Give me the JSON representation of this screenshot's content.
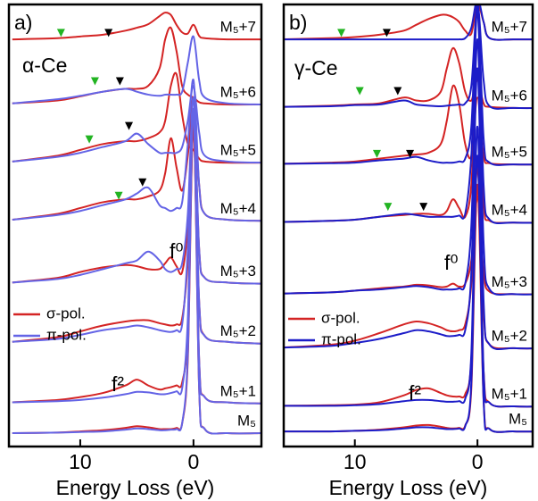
{
  "chart_data": [
    {
      "type": "line",
      "panel_label": "a)",
      "sample": "α-Ce",
      "xlabel": "Energy Loss (eV)",
      "x": [
        16,
        12,
        10,
        8,
        6,
        5,
        4,
        3,
        2.5,
        2,
        1.5,
        1,
        0.5,
        0,
        -0.5,
        -1,
        -3,
        -6
      ],
      "xlim": [
        16.3,
        -6
      ],
      "xticks": [
        10,
        0
      ],
      "ylim": [
        0,
        7.6
      ],
      "spectrum_labels": [
        "M₅+7",
        "M₅+6",
        "M₅+5",
        "M₅+4",
        "M₅+3",
        "M₅+2",
        "M₅+1",
        "M₅"
      ],
      "series": [
        {
          "name": "σ-pol.",
          "color": "#d42424",
          "values": [
            [
              7.0,
              7.02,
              7.05,
              7.08,
              7.15,
              7.2,
              7.26,
              7.4,
              7.46,
              7.42,
              7.25,
              7.12,
              7.1,
              7.25,
              7.06,
              7.02,
              7.0,
              7.0
            ],
            [
              5.9,
              5.95,
              6.02,
              6.1,
              6.15,
              6.15,
              6.2,
              6.5,
              7.0,
              7.2,
              6.8,
              6.2,
              6.05,
              6.0,
              5.92,
              5.9,
              5.88,
              5.88
            ],
            [
              4.9,
              5.0,
              5.1,
              5.2,
              5.25,
              5.25,
              5.3,
              5.4,
              5.6,
              6.2,
              6.4,
              5.7,
              5.2,
              5.1,
              4.95,
              4.9,
              4.88,
              4.88
            ],
            [
              3.9,
              4.0,
              4.1,
              4.2,
              4.25,
              4.25,
              4.3,
              4.4,
              4.7,
              5.3,
              4.8,
              4.4,
              5.0,
              6.0,
              4.5,
              4.0,
              3.9,
              3.88
            ],
            [
              2.82,
              2.9,
              3.0,
              3.08,
              3.12,
              3.1,
              3.05,
              3.05,
              3.15,
              3.25,
              3.1,
              3.0,
              3.8,
              5.8,
              3.4,
              2.9,
              2.82,
              2.8
            ],
            [
              1.8,
              1.88,
              1.98,
              2.08,
              2.15,
              2.17,
              2.17,
              2.12,
              2.1,
              2.08,
              2.1,
              2.2,
              3.2,
              5.5,
              2.5,
              1.9,
              1.8,
              1.77
            ],
            [
              0.76,
              0.8,
              0.85,
              0.92,
              1.05,
              1.15,
              1.05,
              0.98,
              1.0,
              1.02,
              1.05,
              1.1,
              2.0,
              5.5,
              1.5,
              0.85,
              0.76,
              0.74
            ],
            [
              0.23,
              0.24,
              0.26,
              0.28,
              0.32,
              0.35,
              0.33,
              0.3,
              0.3,
              0.3,
              0.32,
              0.4,
              1.5,
              5.6,
              1.0,
              0.3,
              0.23,
              0.23
            ]
          ]
        },
        {
          "name": "π-pol.",
          "color": "#6464e6",
          "values": [
            null,
            [
              5.9,
              5.97,
              6.03,
              6.1,
              6.15,
              6.1,
              6.05,
              6.03,
              6.05,
              6.05,
              6.05,
              6.1,
              6.6,
              7.05,
              6.3,
              6.0,
              5.9,
              5.88
            ],
            [
              4.9,
              4.98,
              5.05,
              5.15,
              5.25,
              5.38,
              5.2,
              5.05,
              5.05,
              5.05,
              5.05,
              5.15,
              5.6,
              6.2,
              5.4,
              5.0,
              4.9,
              4.88
            ],
            [
              3.9,
              3.98,
              4.05,
              4.15,
              4.25,
              4.35,
              4.45,
              4.15,
              4.1,
              4.05,
              4.1,
              4.2,
              5.2,
              6.3,
              4.5,
              4.0,
              3.9,
              3.88
            ],
            [
              2.82,
              2.88,
              2.95,
              3.05,
              3.15,
              3.2,
              3.35,
              3.2,
              3.05,
              3.0,
              3.05,
              3.15,
              4.0,
              6.0,
              3.4,
              2.9,
              2.82,
              2.8
            ],
            [
              1.8,
              1.85,
              1.92,
              2.0,
              2.05,
              2.08,
              2.05,
              2.0,
              1.98,
              1.97,
              2.0,
              2.1,
              3.4,
              5.8,
              2.5,
              1.9,
              1.8,
              1.77
            ],
            [
              0.76,
              0.78,
              0.8,
              0.84,
              0.9,
              0.94,
              0.93,
              0.9,
              0.9,
              0.92,
              0.95,
              1.0,
              2.2,
              5.8,
              1.5,
              0.85,
              0.76,
              0.74
            ],
            [
              0.23,
              0.24,
              0.25,
              0.26,
              0.29,
              0.31,
              0.3,
              0.28,
              0.28,
              0.29,
              0.3,
              0.4,
              1.6,
              5.8,
              1.0,
              0.3,
              0.23,
              0.23
            ]
          ]
        }
      ],
      "markers": [
        {
          "x": 11.7,
          "y": 7.11,
          "color": "#22b422"
        },
        {
          "x": 7.5,
          "y": 7.11,
          "color": "#000000"
        },
        {
          "x": 8.7,
          "y": 6.28,
          "color": "#22b422"
        },
        {
          "x": 6.5,
          "y": 6.28,
          "color": "#000000"
        },
        {
          "x": 9.2,
          "y": 5.28,
          "color": "#22b422"
        },
        {
          "x": 5.7,
          "y": 5.51,
          "color": "#000000"
        },
        {
          "x": 6.6,
          "y": 4.31,
          "color": "#22b422"
        },
        {
          "x": 4.5,
          "y": 4.54,
          "color": "#000000"
        }
      ],
      "annotations": [
        "f⁰",
        "f²"
      ]
    },
    {
      "type": "line",
      "panel_label": "b)",
      "sample": "γ-Ce",
      "xlabel": "Energy Loss (eV)",
      "x": [
        16,
        12,
        10,
        8,
        6,
        5,
        4,
        3,
        2.5,
        2,
        1.5,
        1,
        0.5,
        0,
        -0.5,
        -1,
        -3,
        -6
      ],
      "xlim": [
        15.8,
        -4.5
      ],
      "xticks": [
        10,
        0
      ],
      "ylim": [
        0,
        7.6
      ],
      "spectrum_labels": [
        "M₅+7",
        "M₅+6",
        "M₅+5",
        "M₅+4",
        "M₅+3",
        "M₅+2",
        "M₅+1",
        "M₅"
      ],
      "series": [
        {
          "name": "σ-pol.",
          "color": "#d42424",
          "values": [
            [
              7.0,
              7.02,
              7.04,
              7.08,
              7.15,
              7.25,
              7.35,
              7.42,
              7.42,
              7.38,
              7.3,
              7.15,
              7.1,
              7.6,
              7.3,
              7.02,
              7.0,
              7.0
            ],
            [
              5.84,
              5.86,
              5.88,
              5.9,
              6.0,
              5.95,
              5.95,
              6.1,
              6.5,
              6.85,
              6.6,
              6.1,
              5.95,
              6.3,
              5.9,
              5.84,
              5.82,
              5.82
            ],
            [
              4.86,
              4.88,
              4.9,
              4.95,
              5.0,
              5.02,
              5.05,
              5.2,
              5.6,
              6.2,
              5.9,
              5.2,
              5.0,
              6.0,
              5.0,
              4.87,
              4.85,
              4.85
            ],
            [
              3.86,
              3.88,
              3.9,
              3.95,
              3.98,
              4.0,
              4.0,
              3.98,
              4.05,
              4.25,
              4.1,
              3.95,
              4.5,
              6.5,
              4.2,
              3.88,
              3.85,
              3.85
            ],
            [
              2.63,
              2.65,
              2.68,
              2.72,
              2.75,
              2.78,
              2.77,
              2.74,
              2.75,
              2.8,
              2.75,
              2.8,
              3.2,
              4.3,
              3.0,
              2.66,
              2.62,
              2.62
            ],
            [
              1.7,
              1.75,
              1.82,
              1.95,
              2.1,
              2.15,
              2.12,
              2.05,
              2.0,
              1.98,
              2.0,
              2.1,
              2.8,
              4.8,
              2.3,
              1.75,
              1.69,
              1.69
            ],
            [
              0.7,
              0.71,
              0.72,
              0.76,
              0.88,
              0.97,
              1.0,
              0.92,
              0.88,
              0.86,
              0.86,
              0.9,
              1.5,
              4.5,
              1.3,
              0.75,
              0.69,
              0.69
            ],
            [
              0.26,
              0.26,
              0.27,
              0.29,
              0.33,
              0.36,
              0.37,
              0.34,
              0.32,
              0.31,
              0.32,
              0.36,
              1.0,
              4.5,
              0.8,
              0.3,
              0.26,
              0.26
            ]
          ]
        },
        {
          "name": "π-pol.",
          "color": "#1c1cc8",
          "values": [
            [
              7.0,
              7.0,
              7.0,
              7.0,
              7.0,
              7.0,
              7.0,
              7.0,
              7.0,
              7.0,
              7.0,
              7.02,
              7.2,
              7.7,
              7.3,
              7.02,
              7.0,
              7.0
            ],
            [
              5.84,
              5.85,
              5.87,
              5.88,
              5.95,
              5.88,
              5.86,
              5.85,
              5.86,
              5.87,
              5.88,
              5.9,
              6.2,
              7.6,
              6.3,
              5.85,
              5.82,
              5.82
            ],
            [
              4.86,
              4.87,
              4.88,
              4.92,
              4.95,
              4.98,
              4.92,
              4.88,
              4.88,
              4.88,
              4.9,
              4.95,
              5.5,
              7.6,
              5.3,
              4.88,
              4.85,
              4.85
            ],
            [
              3.86,
              3.88,
              3.9,
              3.95,
              4.0,
              3.98,
              3.95,
              3.95,
              3.95,
              3.95,
              3.97,
              4.0,
              5.0,
              7.5,
              4.5,
              3.9,
              3.85,
              3.85
            ],
            [
              2.63,
              2.65,
              2.68,
              2.7,
              2.74,
              2.76,
              2.74,
              2.7,
              2.7,
              2.7,
              2.72,
              2.8,
              3.8,
              7.0,
              3.5,
              2.7,
              2.62,
              2.62
            ],
            [
              1.7,
              1.73,
              1.78,
              1.85,
              1.95,
              2.0,
              1.98,
              1.93,
              1.9,
              1.9,
              1.92,
              2.0,
              3.0,
              6.5,
              2.5,
              1.75,
              1.69,
              1.69
            ],
            [
              0.7,
              0.7,
              0.71,
              0.73,
              0.78,
              0.8,
              0.8,
              0.78,
              0.77,
              0.77,
              0.78,
              0.82,
              1.6,
              5.5,
              1.3,
              0.75,
              0.69,
              0.69
            ],
            [
              0.26,
              0.26,
              0.27,
              0.28,
              0.31,
              0.33,
              0.33,
              0.31,
              0.3,
              0.3,
              0.31,
              0.35,
              1.1,
              5.0,
              0.8,
              0.3,
              0.26,
              0.26
            ]
          ]
        }
      ],
      "markers": [
        {
          "x": 11.1,
          "y": 7.11,
          "color": "#22b422"
        },
        {
          "x": 7.4,
          "y": 7.11,
          "color": "#000000"
        },
        {
          "x": 9.6,
          "y": 6.11,
          "color": "#22b422"
        },
        {
          "x": 6.5,
          "y": 6.11,
          "color": "#000000"
        },
        {
          "x": 8.2,
          "y": 5.03,
          "color": "#22b422"
        },
        {
          "x": 5.5,
          "y": 5.03,
          "color": "#000000"
        },
        {
          "x": 7.3,
          "y": 4.12,
          "color": "#22b422"
        },
        {
          "x": 4.4,
          "y": 4.12,
          "color": "#000000"
        }
      ],
      "annotations": [
        "f⁰",
        "f²"
      ]
    }
  ]
}
